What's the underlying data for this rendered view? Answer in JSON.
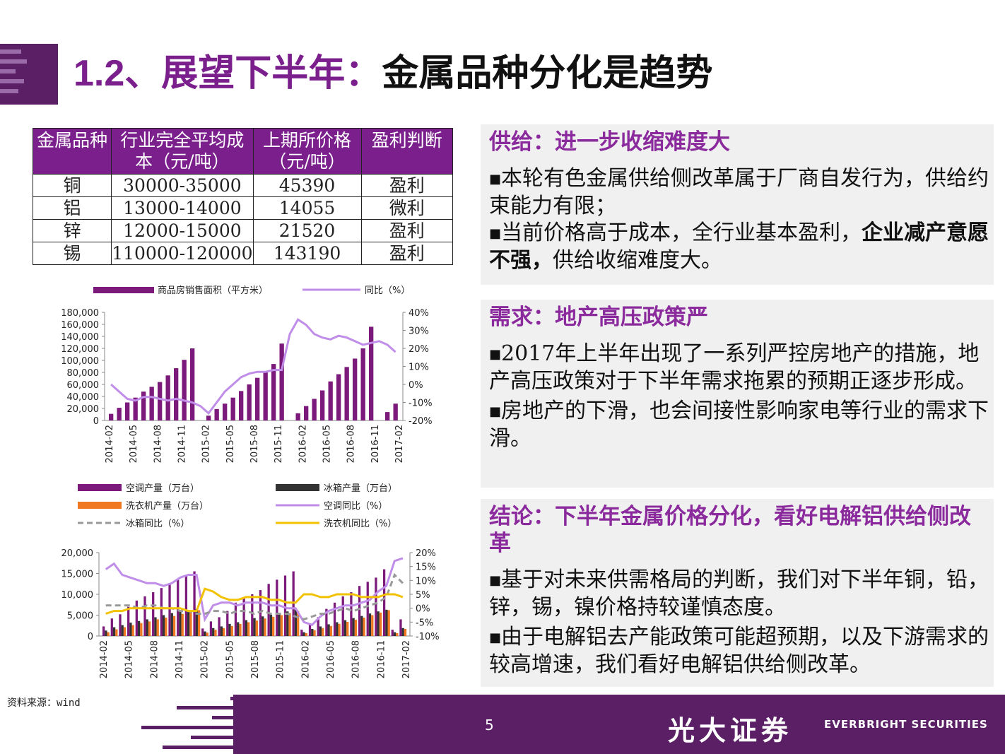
{
  "title": {
    "number": "1.2、",
    "purple": "展望下半年：",
    "black": "金属品种分化是趋势"
  },
  "table": {
    "headers": [
      "金属品种",
      "行业完全平均成本（元/吨）",
      "上期所价格（元/吨）",
      "盈利判断"
    ],
    "rows": [
      [
        "铜",
        "30000-35000",
        "45390",
        "盈利"
      ],
      [
        "铝",
        "13000-14000",
        "14055",
        "微利"
      ],
      [
        "锌",
        "12000-15000",
        "21520",
        "盈利"
      ],
      [
        "锡",
        "110000-120000",
        "143190",
        "盈利"
      ]
    ]
  },
  "panels": {
    "supply": {
      "heading": "供给：进一步收缩难度大",
      "p1": "本轮有色金属供给侧改革属于厂商自发行为，供给约束能力有限；",
      "p2_normal": "当前价格高于成本，全行业基本盈利，",
      "p2_bold": "企业减产意愿不强，",
      "p2_tail": "供给收缩难度大。"
    },
    "demand": {
      "heading": "需求：地产高压政策严",
      "p1": "2017年上半年出现了一系列严控房地产的措施，地产高压政策对于下半年需求拖累的预期正逐步形成。",
      "p2": "房地产的下滑，也会间接性影响家电等行业的需求下滑。"
    },
    "conclusion": {
      "heading": "结论：下半年金属价格分化，看好电解铝供给侧改革",
      "p1": "基于对未来供需格局的判断，我们对下半年铜，铅，锌，锡，镍价格持较谨慎态度。",
      "p2": "由于电解铝去产能政策可能超预期，以及下游需求的较高增速，我们看好电解铝供给侧改革。"
    }
  },
  "colors": {
    "purple": "#7a1f8c",
    "bar_purple": "#7b1a7a",
    "line_lavender": "#c08ee8",
    "orange": "#f07820",
    "dark": "#333333",
    "yellow": "#f2c200",
    "gray_dash": "#999999"
  },
  "chart_data": [
    {
      "type": "bar",
      "title": "",
      "legend": [
        "商品房销售面积（平方米）",
        "同比（%）"
      ],
      "x_ticks": [
        "2014-02",
        "2014-05",
        "2014-08",
        "2014-11",
        "2015-02",
        "2015-05",
        "2015-08",
        "2015-11",
        "2016-02",
        "2016-05",
        "2016-08",
        "2016-11",
        "2017-02"
      ],
      "left_ticks": [
        "180,000",
        "160,000",
        "140,000",
        "120,000",
        "100,000",
        "80,000",
        "60,000",
        "40,000",
        "20,000",
        "0"
      ],
      "right_ticks": [
        "40%",
        "30%",
        "20%",
        "10%",
        "0%",
        "-10%",
        "-20%"
      ],
      "ylim_left": [
        0,
        180000
      ],
      "ylim_right": [
        -20,
        40
      ],
      "series": [
        {
          "name": "商品房销售面积（平方米）",
          "type": "bar",
          "values": [
            11000,
            21000,
            30000,
            38000,
            48000,
            56000,
            64000,
            75000,
            87000,
            101000,
            120000,
            null,
            8000,
            19000,
            28000,
            38000,
            49000,
            60000,
            71000,
            82000,
            94000,
            128000,
            null,
            12000,
            24000,
            36000,
            50000,
            65000,
            77000,
            89000,
            103000,
            120000,
            156000,
            null,
            14000,
            28000
          ]
        },
        {
          "name": "同比（%）",
          "type": "line",
          "values": [
            0,
            -4,
            -8,
            -9,
            -7,
            -7,
            -8,
            -9,
            -8,
            -9,
            -10,
            -12,
            -16,
            -10,
            -4,
            0,
            4,
            6,
            7,
            7,
            8,
            8,
            28,
            36,
            33,
            28,
            26,
            25,
            27,
            26,
            24,
            22,
            23,
            24,
            22,
            18
          ]
        }
      ]
    },
    {
      "type": "bar",
      "title": "",
      "legend": [
        "空调产量（万台）",
        "冰箱产量（万台）",
        "洗衣机产量（万台）",
        "空调同比（%）",
        "冰箱同比（%）",
        "洗衣机同比（%）"
      ],
      "x_ticks": [
        "2014-02",
        "2014-05",
        "2014-08",
        "2014-11",
        "2015-02",
        "2015-05",
        "2015-08",
        "2015-11",
        "2016-02",
        "2016-05",
        "2016-08",
        "2016-11",
        "2017-02"
      ],
      "left_ticks": [
        "20,000",
        "15,000",
        "10,000",
        "5,000",
        "0"
      ],
      "right_ticks": [
        "20%",
        "15%",
        "10%",
        "5%",
        "0%",
        "-5%",
        "-10%"
      ],
      "ylim_left": [
        0,
        20000
      ],
      "ylim_right": [
        -10,
        20
      ],
      "series": [
        {
          "name": "空调产量（万台）",
          "type": "bar",
          "values": [
            2300,
            4200,
            5200,
            7000,
            8500,
            9500,
            10500,
            11500,
            12500,
            13500,
            14500,
            15500,
            1800,
            3500,
            4500,
            6000,
            8000,
            9000,
            10000,
            11000,
            12500,
            13500,
            14500,
            15500,
            1500,
            3000,
            4500,
            6500,
            8000,
            9500,
            10500,
            12000,
            13000,
            14000,
            16000,
            1500,
            4000
          ]
        },
        {
          "name": "冰箱产量（万台）",
          "type": "bar",
          "values": [
            1300,
            2100,
            2600,
            3200,
            3600,
            4000,
            4500,
            5000,
            5500,
            5800,
            6100,
            6500,
            1100,
            1900,
            2300,
            2900,
            3300,
            3800,
            4300,
            4700,
            5100,
            5500,
            5900,
            6300,
            900,
            1700,
            2300,
            2800,
            3300,
            3800,
            4300,
            4800,
            5400,
            5900,
            6300,
            900,
            1900
          ]
        },
        {
          "name": "洗衣机产量（万台）",
          "type": "bar",
          "values": [
            900,
            1600,
            2100,
            2600,
            3100,
            3500,
            4000,
            4400,
            4800,
            5300,
            5700,
            6200,
            800,
            1500,
            1900,
            2400,
            2900,
            3300,
            3700,
            4200,
            4600,
            5000,
            5500,
            6000,
            700,
            1400,
            1900,
            2400,
            2900,
            3400,
            3900,
            4400,
            5000,
            5600,
            6200,
            700,
            1700
          ]
        },
        {
          "name": "空调同比（%）",
          "type": "line",
          "values": [
            14,
            16,
            12,
            11,
            10,
            9,
            9,
            8,
            9,
            11,
            12,
            12,
            -4,
            1,
            2,
            2,
            1,
            2,
            2,
            2,
            1,
            1,
            0,
            0,
            -5,
            -6,
            -3,
            -1,
            0,
            1,
            1,
            2,
            3,
            6,
            8,
            17,
            18
          ]
        },
        {
          "name": "冰箱同比（%）",
          "type": "line",
          "values": [
            1,
            1,
            1,
            1,
            0,
            1,
            1,
            0,
            0,
            -1,
            -1,
            -2,
            -2,
            -1,
            -1,
            -2,
            -1,
            -1,
            -2,
            -1,
            -2,
            -2,
            -2,
            -3,
            -4,
            -3,
            -2,
            -2,
            -1,
            0,
            -1,
            0,
            1,
            2,
            4,
            12,
            9
          ]
        },
        {
          "name": "洗衣机同比（%）",
          "type": "line",
          "values": [
            -2,
            -1,
            -1,
            0,
            0,
            0,
            0,
            0,
            0,
            0,
            -1,
            -1,
            7,
            6,
            4,
            3,
            3,
            4,
            4,
            4,
            3,
            3,
            2,
            2,
            5,
            5,
            4,
            4,
            5,
            5,
            5,
            4,
            4,
            4,
            5,
            5,
            4
          ]
        }
      ]
    }
  ],
  "footer": {
    "source": "资料来源：wind",
    "page": "5",
    "brand_cn": "光大证券",
    "brand_en": "EVERBRIGHT SECURITIES"
  }
}
